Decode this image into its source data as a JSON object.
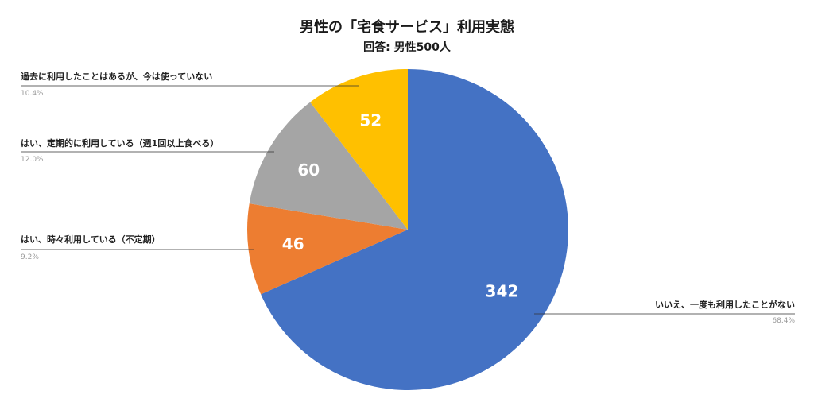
{
  "chart_data": {
    "type": "pie",
    "title": "男性の「宅食サービス」利用実態",
    "subtitle": "回答: 男性500人",
    "slices": [
      {
        "label": "いいえ、一度も利用したことがない",
        "value": 342,
        "percent": "68.4%",
        "color": "#4472C4"
      },
      {
        "label": "はい、時々利用している（不定期）",
        "value": 46,
        "percent": "9.2%",
        "color": "#ED7D31"
      },
      {
        "label": "はい、定期的に利用している（週1回以上食べる）",
        "value": 60,
        "percent": "12.0%",
        "color": "#A5A5A5"
      },
      {
        "label": "過去に利用したことはあるが、今は使っていない",
        "value": 52,
        "percent": "10.4%",
        "color": "#FFC000"
      }
    ]
  }
}
